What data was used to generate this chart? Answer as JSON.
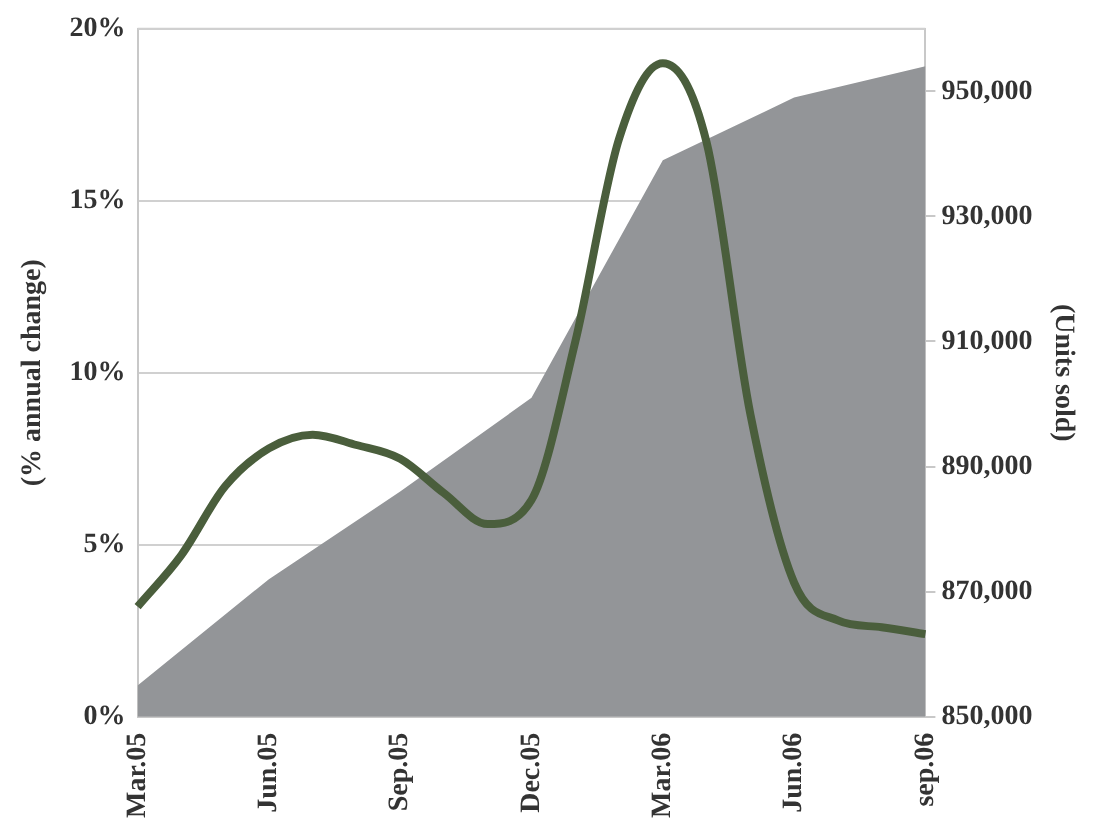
{
  "chart_data": {
    "type": "line",
    "categories": [
      "Mar.05",
      null,
      null,
      "Jun.05",
      null,
      null,
      "Sep.05",
      null,
      null,
      "Dec.05",
      null,
      null,
      "Mar.06",
      null,
      null,
      "Jun.06",
      null,
      null,
      "sep.06"
    ],
    "ylabel": "(% annual change)",
    "y2label": "(Units sold)",
    "series": [
      {
        "type": "area",
        "axis": "y2",
        "color": "#939598",
        "values": [
          855000,
          null,
          null,
          872000,
          null,
          null,
          886000,
          null,
          null,
          901000,
          null,
          null,
          939000,
          null,
          null,
          949000,
          null,
          null,
          954000
        ]
      },
      {
        "type": "line",
        "color": "#4a5e3c",
        "values": [
          3.2,
          4.7,
          6.7,
          7.8,
          8.2,
          7.9,
          7.5,
          6.5,
          5.6,
          6.3,
          10.9,
          16.8,
          19.0,
          16.7,
          8.8,
          3.9,
          2.8,
          2.6,
          2.4
        ]
      }
    ],
    "ylim": [
      0,
      20
    ],
    "yticks": [
      {
        "value": 0,
        "label": "0%"
      },
      {
        "value": 5,
        "label": "5%"
      },
      {
        "value": 10,
        "label": "10%"
      },
      {
        "value": 15,
        "label": "15%"
      },
      {
        "value": 20,
        "label": "20%"
      }
    ],
    "y2lim": [
      850000,
      960000
    ],
    "y2ticks": [
      {
        "value": 850000,
        "label": "850,000"
      },
      {
        "value": 870000,
        "label": "870,000"
      },
      {
        "value": 890000,
        "label": "890,000"
      },
      {
        "value": 910000,
        "label": "910,000"
      },
      {
        "value": 930000,
        "label": "930,000"
      },
      {
        "value": 950000,
        "label": "950,000"
      }
    ],
    "grid": "y",
    "legend": false,
    "marker": "none",
    "line_style": "solid"
  }
}
